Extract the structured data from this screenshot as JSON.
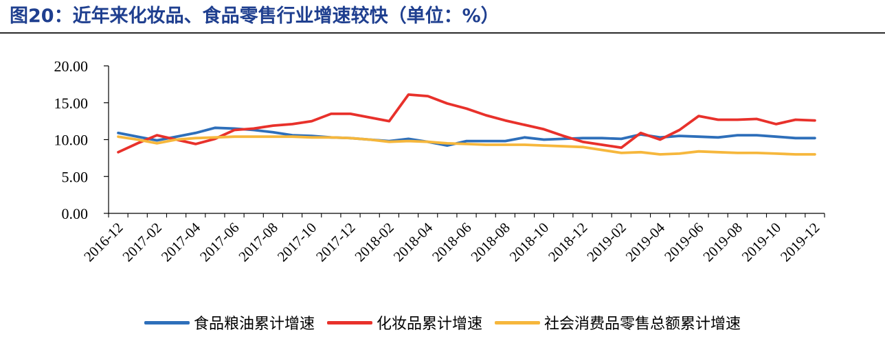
{
  "title": "图20：近年来化妆品、食品零售行业增速较快（单位：%）",
  "chart_data": {
    "type": "line",
    "title": "图20：近年来化妆品、食品零售行业增速较快（单位：%）",
    "xlabel": "",
    "ylabel": "",
    "ylim": [
      0,
      20
    ],
    "yticks": [
      "0.00",
      "5.00",
      "10.00",
      "15.00",
      "20.00"
    ],
    "grid": false,
    "legend_position": "bottom",
    "x_tick_labels": [
      "2016-12",
      "2017-02",
      "2017-04",
      "2017-06",
      "2017-08",
      "2017-10",
      "2017-12",
      "2018-02",
      "2018-04",
      "2018-06",
      "2018-08",
      "2018-10",
      "2018-12",
      "2019-02",
      "2019-04",
      "2019-06",
      "2019-08",
      "2019-10",
      "2019-12"
    ],
    "x": [
      "2016-12",
      "2017-01",
      "2017-02",
      "2017-03",
      "2017-04",
      "2017-05",
      "2017-06",
      "2017-07",
      "2017-08",
      "2017-09",
      "2017-10",
      "2017-11",
      "2017-12",
      "2018-01",
      "2018-02",
      "2018-03",
      "2018-04",
      "2018-05",
      "2018-06",
      "2018-07",
      "2018-08",
      "2018-09",
      "2018-10",
      "2018-11",
      "2018-12",
      "2019-01",
      "2019-02",
      "2019-03",
      "2019-04",
      "2019-05",
      "2019-06",
      "2019-07",
      "2019-08",
      "2019-09",
      "2019-10",
      "2019-11",
      "2019-12"
    ],
    "series": [
      {
        "name": "食品粮油累计增速",
        "color": "#2e6fba",
        "values": [
          10.9,
          10.4,
          9.9,
          10.4,
          10.9,
          11.6,
          11.5,
          11.3,
          11.0,
          10.6,
          10.5,
          10.3,
          10.2,
          10.0,
          9.8,
          10.1,
          9.7,
          9.2,
          9.8,
          9.8,
          9.8,
          10.3,
          10.0,
          10.1,
          10.2,
          10.2,
          10.1,
          10.7,
          10.3,
          10.5,
          10.4,
          10.3,
          10.6,
          10.6,
          10.4,
          10.2,
          10.2
        ]
      },
      {
        "name": "化妆品累计增速",
        "color": "#e8312b",
        "values": [
          8.3,
          9.5,
          10.6,
          10.0,
          9.4,
          10.1,
          11.3,
          11.5,
          11.9,
          12.1,
          12.5,
          13.5,
          13.5,
          13.0,
          12.5,
          16.1,
          15.9,
          14.9,
          14.2,
          13.3,
          12.6,
          12.0,
          11.4,
          10.5,
          9.7,
          9.3,
          8.9,
          10.9,
          10.0,
          11.3,
          13.2,
          12.7,
          12.7,
          12.8,
          12.1,
          12.7,
          12.6
        ]
      },
      {
        "name": "社会消费品零售总额累计增速",
        "color": "#f6b73c",
        "values": [
          10.4,
          10.0,
          9.5,
          10.0,
          10.2,
          10.3,
          10.4,
          10.4,
          10.4,
          10.4,
          10.3,
          10.3,
          10.2,
          10.0,
          9.7,
          9.8,
          9.7,
          9.5,
          9.4,
          9.3,
          9.3,
          9.3,
          9.2,
          9.1,
          9.0,
          8.6,
          8.2,
          8.3,
          8.0,
          8.1,
          8.4,
          8.3,
          8.2,
          8.2,
          8.1,
          8.0,
          8.0
        ]
      }
    ]
  }
}
